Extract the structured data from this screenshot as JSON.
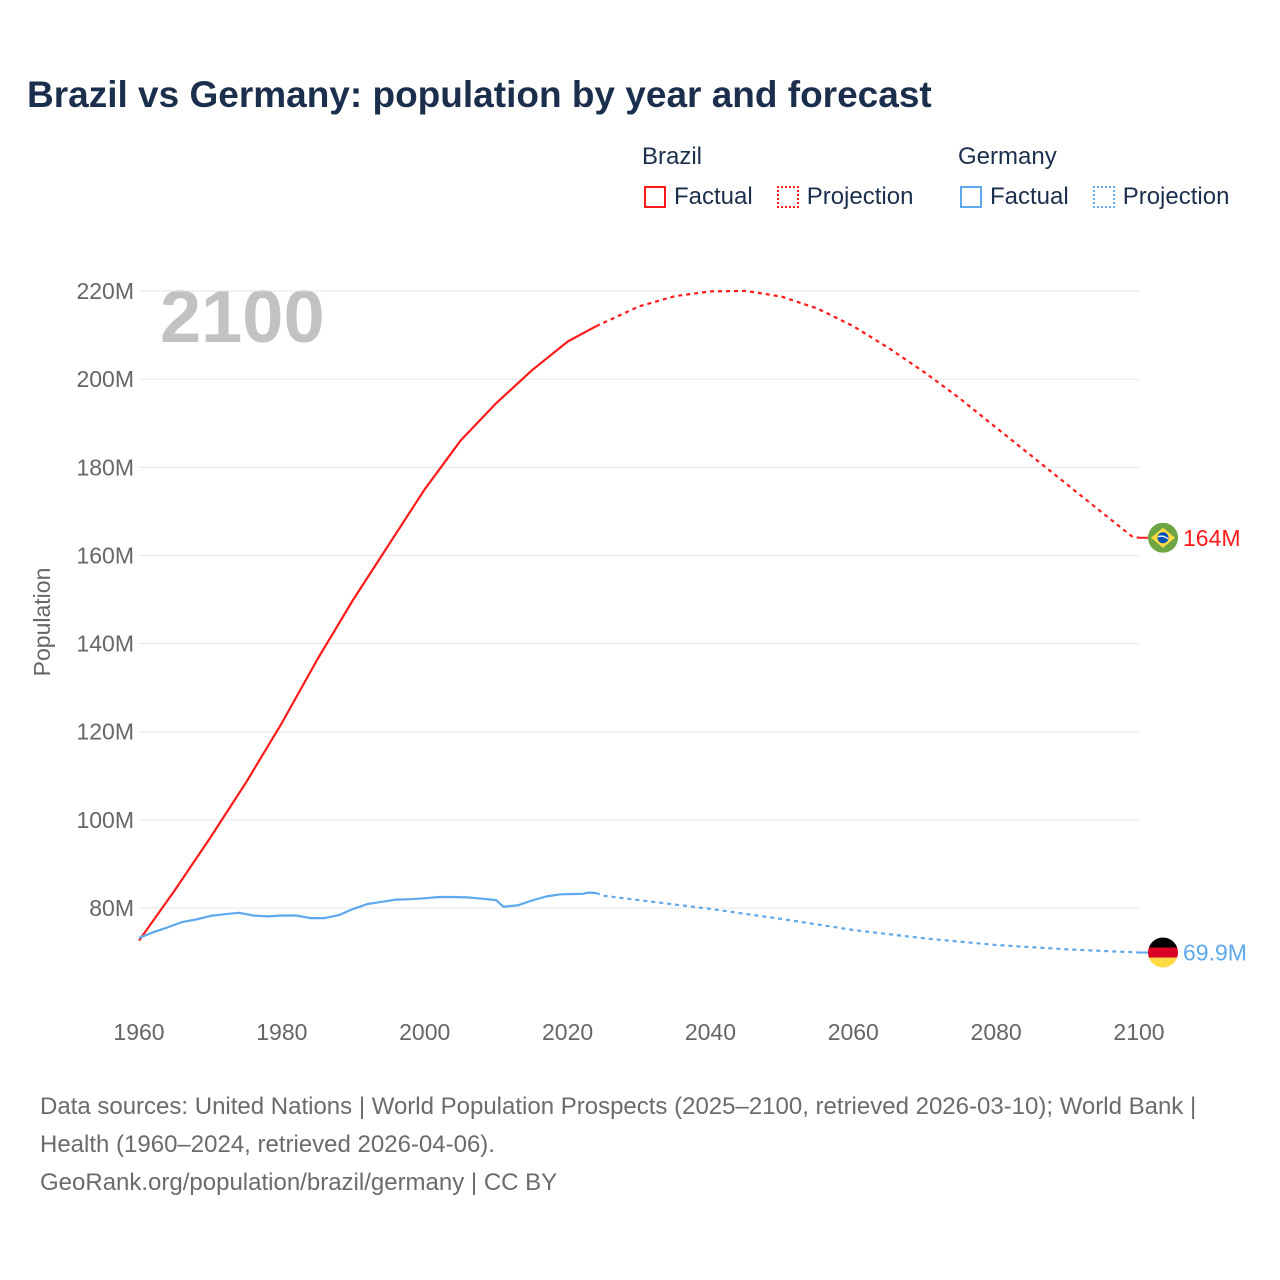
{
  "title": "Brazil vs Germany: population by year and forecast",
  "legend": {
    "groups": [
      {
        "name": "Brazil",
        "factual": "Factual",
        "projection": "Projection",
        "color": "#ff1a1a"
      },
      {
        "name": "Germany",
        "factual": "Factual",
        "projection": "Projection",
        "color": "#5ea8ec"
      }
    ]
  },
  "chart_data": {
    "type": "line",
    "title": "Brazil vs Germany: population by year and forecast",
    "xlabel": "",
    "ylabel": "Population",
    "year_label": "2100",
    "xlim": [
      1960,
      2100
    ],
    "ylim": [
      60,
      225
    ],
    "x_ticks": [
      1960,
      1980,
      2000,
      2020,
      2040,
      2060,
      2080,
      2100
    ],
    "x_tick_labels": [
      "1960",
      "1980",
      "2000",
      "2020",
      "2040",
      "2060",
      "2080",
      "2100"
    ],
    "y_ticks": [
      80,
      100,
      120,
      140,
      160,
      180,
      200,
      220
    ],
    "y_tick_labels": [
      "80M",
      "100M",
      "120M",
      "140M",
      "160M",
      "180M",
      "200M",
      "220M"
    ],
    "grid": true,
    "legend_position": "top-right",
    "series": [
      {
        "name": "Brazil",
        "color": "#ff1a1a",
        "end_label": "164M",
        "flag": "brazil",
        "factual": {
          "x": [
            1960,
            1965,
            1970,
            1975,
            1980,
            1985,
            1990,
            1995,
            2000,
            2005,
            2010,
            2015,
            2020,
            2024
          ],
          "y": [
            72.6,
            84,
            96,
            108.5,
            122,
            136.5,
            150,
            162.5,
            175,
            186,
            194.5,
            202,
            208.5,
            212
          ]
        },
        "projection": {
          "x": [
            2024,
            2030,
            2035,
            2040,
            2045,
            2050,
            2055,
            2060,
            2065,
            2070,
            2075,
            2080,
            2085,
            2090,
            2095,
            2099,
            2100
          ],
          "y": [
            212,
            216.5,
            218.8,
            219.9,
            220,
            218.7,
            216,
            212,
            207,
            201.5,
            195.5,
            189,
            182.5,
            176,
            169.5,
            164.3,
            164
          ]
        }
      },
      {
        "name": "Germany",
        "color": "#5ea8ec",
        "end_label": "69.9M",
        "flag": "germany",
        "factual": {
          "x": [
            1960,
            1962,
            1964,
            1966,
            1968,
            1970,
            1972,
            1974,
            1976,
            1978,
            1980,
            1982,
            1984,
            1986,
            1988,
            1990,
            1992,
            1994,
            1996,
            1998,
            2000,
            2002,
            2004,
            2006,
            2008,
            2010,
            2011,
            2013,
            2015,
            2017,
            2019,
            2022,
            2023,
            2024
          ],
          "y": [
            73.2,
            74.5,
            75.6,
            76.8,
            77.4,
            78.2,
            78.6,
            78.9,
            78.3,
            78.1,
            78.3,
            78.3,
            77.7,
            77.7,
            78.4,
            79.8,
            80.9,
            81.4,
            81.9,
            82.0,
            82.2,
            82.5,
            82.5,
            82.4,
            82.1,
            81.8,
            80.3,
            80.6,
            81.7,
            82.6,
            83.1,
            83.2,
            83.5,
            83.4
          ]
        },
        "projection": {
          "x": [
            2024,
            2025,
            2030,
            2040,
            2050,
            2060,
            2070,
            2080,
            2090,
            2100
          ],
          "y": [
            83.4,
            82.8,
            81.8,
            79.8,
            77.5,
            75,
            73.1,
            71.6,
            70.6,
            69.9
          ]
        }
      }
    ]
  },
  "footer": {
    "sources": "Data sources: United Nations | World Population Prospects (2025–2100, retrieved 2026-03-10); World Bank | Health (1960–2024, retrieved 2026-04-06).",
    "credit": "GeoRank.org/population/brazil/germany | CC BY"
  }
}
